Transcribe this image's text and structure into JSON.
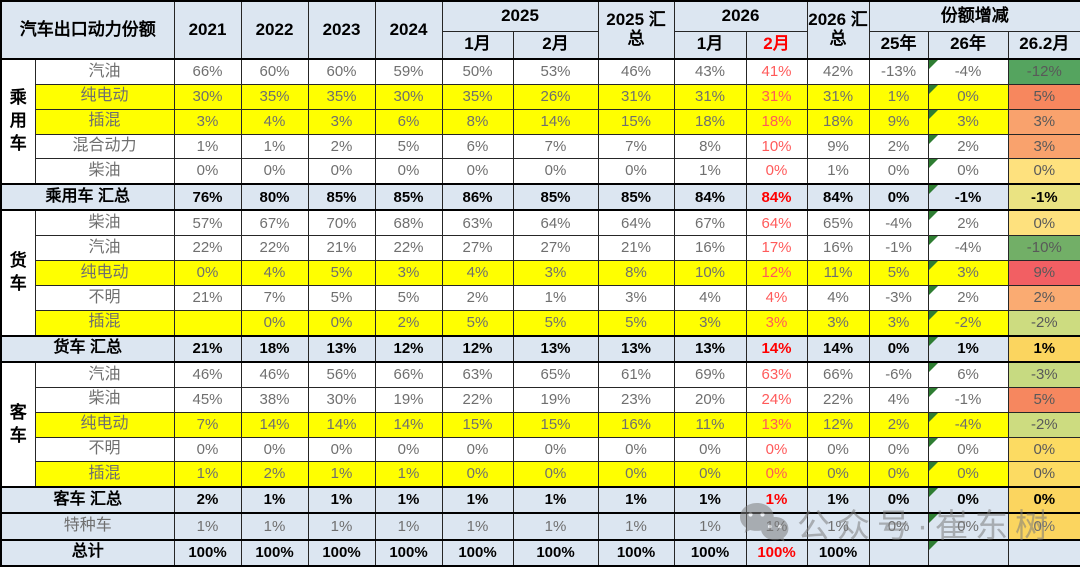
{
  "watermark": {
    "text": "公众号·崔东树",
    "icon": "wechat-icon",
    "color": "#7D7D7D"
  },
  "colors": {
    "header_bg": "#DCE6F1",
    "highlight_bg": "#FFFF00",
    "summary_bg": "#DCE6F1",
    "red_bold": "#FF0000",
    "red_light": "#FF5A5A",
    "value_text": "#6F6F6F",
    "error_indicator_green": "#2E7D32"
  },
  "header": {
    "col_title": "汽车出口动力份额",
    "years": [
      "2021",
      "2022",
      "2023",
      "2024"
    ],
    "grp_2025": "2025",
    "months_2025": [
      "1月",
      "2月"
    ],
    "sum_2025": "2025 汇总",
    "grp_2026": "2026",
    "months_2026": [
      "1月",
      "2月"
    ],
    "sum_2026": "2026 汇总",
    "grp_change": "份额增减",
    "change_cols": [
      "25年",
      "26年",
      "26.2月"
    ]
  },
  "chart_data": {
    "type": "table",
    "title": "汽车出口动力份额",
    "columns": [
      "2021",
      "2022",
      "2023",
      "2024",
      "2025-1月",
      "2025-2月",
      "2025汇总",
      "2026-1月",
      "2026-2月",
      "2026汇总",
      "份额增减25年",
      "份额增减26年",
      "份额增减26.2月"
    ],
    "rows": [
      {
        "group": "乘用车",
        "group_span": 5,
        "label": "汽油",
        "type": "fuel",
        "highlight": false,
        "values": [
          "66%",
          "60%",
          "60%",
          "59%",
          "50%",
          "53%",
          "46%",
          "43%",
          "41%",
          "42%",
          "-13%",
          "-4%",
          "-12%"
        ],
        "trend_bg": "#55A45F"
      },
      {
        "label": "纯电动",
        "type": "fuel",
        "highlight": true,
        "values": [
          "30%",
          "35%",
          "35%",
          "30%",
          "35%",
          "26%",
          "31%",
          "31%",
          "31%",
          "31%",
          "1%",
          "0%",
          "5%"
        ],
        "trend_bg": "#F7875E"
      },
      {
        "label": "插混",
        "type": "fuel",
        "highlight": true,
        "values": [
          "3%",
          "4%",
          "3%",
          "6%",
          "8%",
          "14%",
          "15%",
          "18%",
          "18%",
          "18%",
          "9%",
          "3%",
          "3%"
        ],
        "trend_bg": "#F9A26D"
      },
      {
        "label": "混合动力",
        "type": "fuel",
        "highlight": false,
        "values": [
          "1%",
          "1%",
          "2%",
          "5%",
          "6%",
          "7%",
          "7%",
          "8%",
          "10%",
          "9%",
          "2%",
          "2%",
          "3%"
        ],
        "trend_bg": "#F9A26D"
      },
      {
        "label": "柴油",
        "type": "fuel",
        "highlight": false,
        "values": [
          "0%",
          "0%",
          "0%",
          "0%",
          "0%",
          "0%",
          "0%",
          "1%",
          "0%",
          "1%",
          "0%",
          "0%",
          "0%"
        ],
        "trend_bg": "#FEE17E"
      },
      {
        "label": "乘用车 汇总",
        "type": "summary",
        "highlight": false,
        "values": [
          "76%",
          "80%",
          "85%",
          "85%",
          "86%",
          "85%",
          "85%",
          "84%",
          "84%",
          "84%",
          "0%",
          "-1%",
          "-1%"
        ],
        "trend_bg": "#EAE382"
      },
      {
        "group": "货车",
        "group_span": 5,
        "label": "柴油",
        "type": "fuel",
        "highlight": false,
        "values": [
          "57%",
          "67%",
          "70%",
          "68%",
          "63%",
          "64%",
          "64%",
          "67%",
          "64%",
          "65%",
          "-4%",
          "2%",
          "0%"
        ],
        "trend_bg": "#FEE17E"
      },
      {
        "label": "汽油",
        "type": "fuel",
        "highlight": false,
        "values": [
          "22%",
          "22%",
          "21%",
          "22%",
          "27%",
          "27%",
          "21%",
          "16%",
          "17%",
          "16%",
          "-1%",
          "-4%",
          "-10%"
        ],
        "trend_bg": "#72AF67"
      },
      {
        "label": "纯电动",
        "type": "fuel",
        "highlight": true,
        "values": [
          "0%",
          "4%",
          "5%",
          "3%",
          "4%",
          "3%",
          "8%",
          "10%",
          "12%",
          "11%",
          "5%",
          "3%",
          "9%"
        ],
        "trend_bg": "#F25F63"
      },
      {
        "label": "不明",
        "type": "fuel",
        "highlight": false,
        "values": [
          "21%",
          "7%",
          "5%",
          "5%",
          "2%",
          "1%",
          "3%",
          "4%",
          "4%",
          "4%",
          "-3%",
          "2%",
          "2%"
        ],
        "trend_bg": "#FAAB72"
      },
      {
        "label": "插混",
        "type": "fuel",
        "highlight": true,
        "values": [
          "",
          "0%",
          "0%",
          "2%",
          "5%",
          "5%",
          "5%",
          "3%",
          "3%",
          "3%",
          "3%",
          "-2%",
          "-2%"
        ],
        "trend_bg": "#CDDC80"
      },
      {
        "label": "货车 汇总",
        "type": "summary",
        "highlight": false,
        "values": [
          "21%",
          "18%",
          "13%",
          "12%",
          "12%",
          "13%",
          "13%",
          "13%",
          "14%",
          "14%",
          "0%",
          "1%",
          "1%"
        ],
        "trend_bg": "#FBD55F"
      },
      {
        "group": "客车",
        "group_span": 5,
        "label": "汽油",
        "type": "fuel",
        "highlight": false,
        "values": [
          "46%",
          "46%",
          "56%",
          "66%",
          "63%",
          "65%",
          "61%",
          "69%",
          "63%",
          "66%",
          "-6%",
          "6%",
          "-3%"
        ],
        "trend_bg": "#C7DA81"
      },
      {
        "label": "柴油",
        "type": "fuel",
        "highlight": false,
        "values": [
          "45%",
          "38%",
          "30%",
          "19%",
          "22%",
          "19%",
          "23%",
          "20%",
          "24%",
          "22%",
          "4%",
          "-1%",
          "5%"
        ],
        "trend_bg": "#F6875F"
      },
      {
        "label": "纯电动",
        "type": "fuel",
        "highlight": true,
        "values": [
          "7%",
          "14%",
          "14%",
          "14%",
          "15%",
          "15%",
          "16%",
          "11%",
          "13%",
          "12%",
          "2%",
          "-4%",
          "-2%"
        ],
        "trend_bg": "#CDDC80"
      },
      {
        "label": "不明",
        "type": "fuel",
        "highlight": false,
        "values": [
          "0%",
          "0%",
          "0%",
          "0%",
          "0%",
          "0%",
          "0%",
          "0%",
          "0%",
          "0%",
          "0%",
          "0%",
          "0%"
        ],
        "trend_bg": "#FCDB62"
      },
      {
        "label": "插混",
        "type": "fuel",
        "highlight": true,
        "values": [
          "1%",
          "2%",
          "1%",
          "1%",
          "0%",
          "0%",
          "0%",
          "0%",
          "0%",
          "0%",
          "0%",
          "0%",
          "0%"
        ],
        "trend_bg": "#FCDB62"
      },
      {
        "label": "客车 汇总",
        "type": "summary",
        "highlight": false,
        "values": [
          "2%",
          "1%",
          "1%",
          "1%",
          "1%",
          "1%",
          "1%",
          "1%",
          "1%",
          "1%",
          "0%",
          "0%",
          "0%"
        ],
        "trend_bg": "#FBD55F"
      },
      {
        "label": "特种车",
        "type": "special",
        "highlight": false,
        "values": [
          "1%",
          "1%",
          "1%",
          "1%",
          "1%",
          "1%",
          "1%",
          "1%",
          "1%",
          "1%",
          "0%",
          "0%",
          "0%"
        ],
        "trend_bg": "#FBD55F"
      },
      {
        "label": "总计",
        "type": "total",
        "highlight": false,
        "values": [
          "100%",
          "100%",
          "100%",
          "100%",
          "100%",
          "100%",
          "100%",
          "100%",
          "100%",
          "100%",
          "",
          "",
          ""
        ],
        "trend_bg": "#DCE6F1"
      }
    ]
  }
}
